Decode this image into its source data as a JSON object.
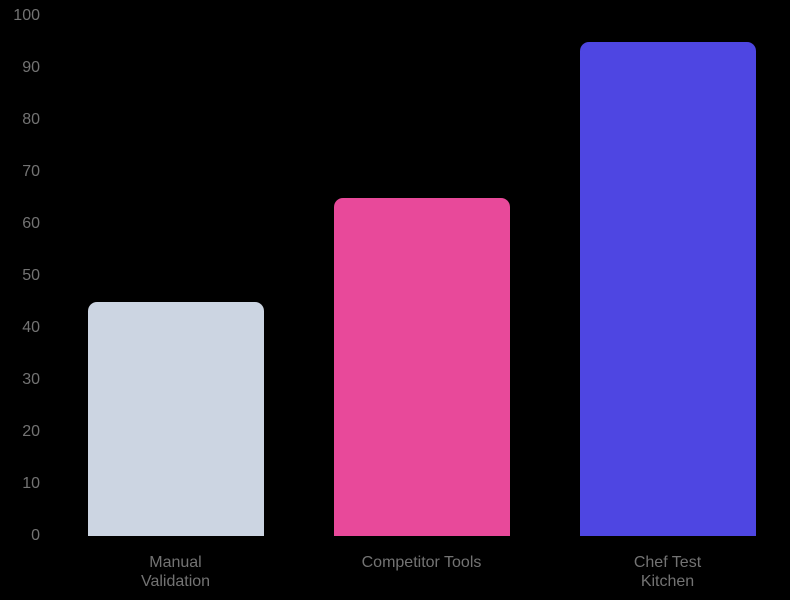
{
  "canvas": {
    "background": "#000000"
  },
  "chart_data": {
    "type": "bar",
    "title": "",
    "xlabel": "",
    "ylabel": "",
    "categories": [
      "Manual Validation",
      "Competitor Tools",
      "Chef Test Kitchen"
    ],
    "category_label_lines": [
      [
        "Manual",
        "Validation"
      ],
      [
        "Competitor Tools"
      ],
      [
        "Chef Test",
        "Kitchen"
      ]
    ],
    "values": [
      45,
      65,
      95
    ],
    "bar_colors": [
      "#ccd5e2",
      "#e8499a",
      "#4e46e2"
    ],
    "ylim": [
      0,
      100
    ],
    "yticks": [
      0,
      10,
      20,
      30,
      40,
      50,
      60,
      70,
      80,
      90,
      100
    ],
    "grid": false,
    "legend": "none",
    "tick_color": "#737373",
    "label_color": "#737373"
  }
}
